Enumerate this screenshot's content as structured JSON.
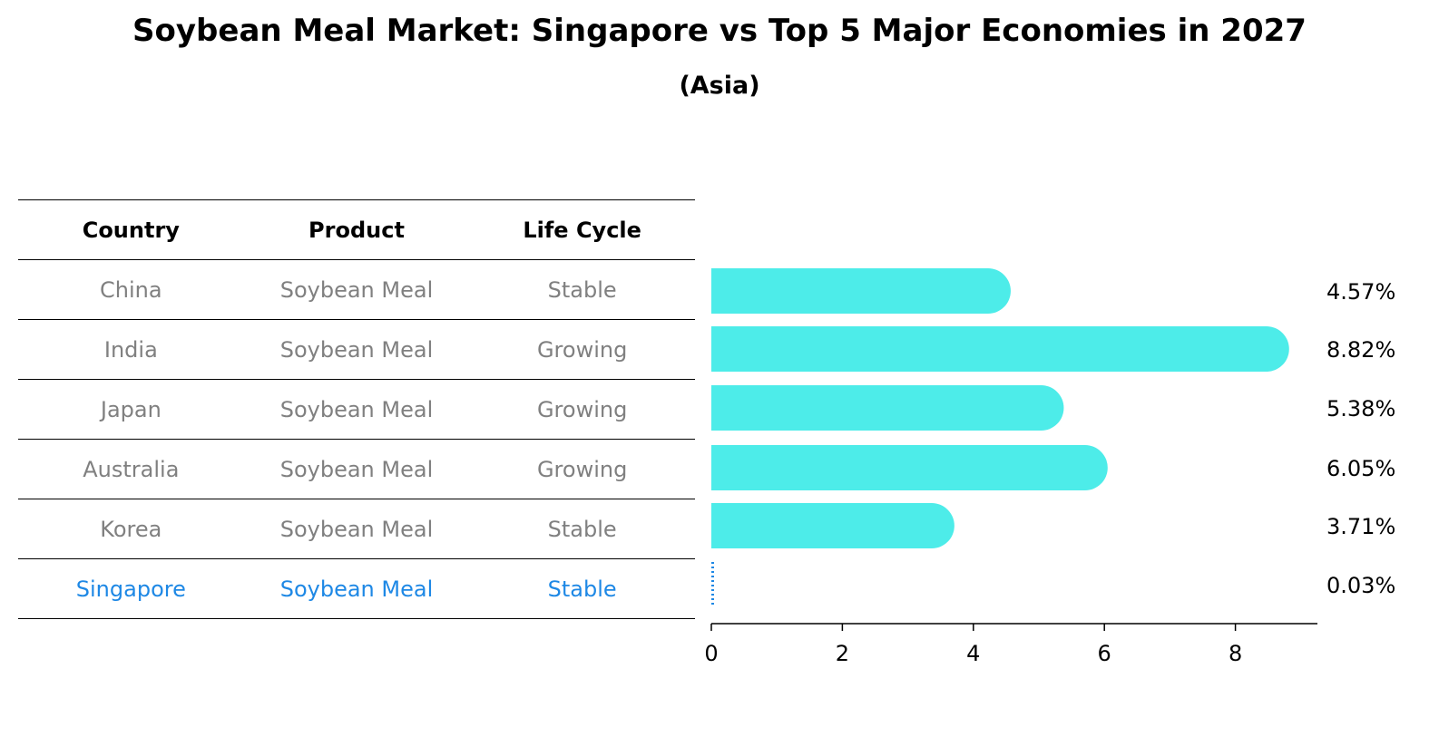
{
  "title": "Soybean Meal Market: Singapore vs Top 5 Major Economies in 2027",
  "subtitle": "(Asia)",
  "table": {
    "headers": [
      "Country",
      "Product",
      "Life Cycle"
    ],
    "rows": [
      {
        "country": "China",
        "product": "Soybean Meal",
        "life_cycle": "Stable"
      },
      {
        "country": "India",
        "product": "Soybean Meal",
        "life_cycle": "Growing"
      },
      {
        "country": "Japan",
        "product": "Soybean Meal",
        "life_cycle": "Growing"
      },
      {
        "country": "Australia",
        "product": "Soybean Meal",
        "life_cycle": "Growing"
      },
      {
        "country": "Korea",
        "product": "Soybean Meal",
        "life_cycle": "Stable"
      },
      {
        "country": "Singapore",
        "product": "Soybean Meal",
        "life_cycle": "Stable"
      }
    ]
  },
  "colors": {
    "bar": "#4dece9",
    "highlight": "#1e88e5",
    "muted_text": "#808080"
  },
  "chart_data": {
    "type": "bar",
    "orientation": "horizontal",
    "categories": [
      "China",
      "India",
      "Japan",
      "Australia",
      "Korea",
      "Singapore"
    ],
    "values": [
      4.57,
      8.82,
      5.38,
      6.05,
      3.71,
      0.03
    ],
    "value_labels": [
      "4.57%",
      "8.82%",
      "5.38%",
      "6.05%",
      "3.71%",
      "0.03%"
    ],
    "xlim": [
      0,
      9.2
    ],
    "xticks": [
      0,
      2,
      4,
      6,
      8
    ],
    "highlight_category": "Singapore",
    "grid": false
  }
}
